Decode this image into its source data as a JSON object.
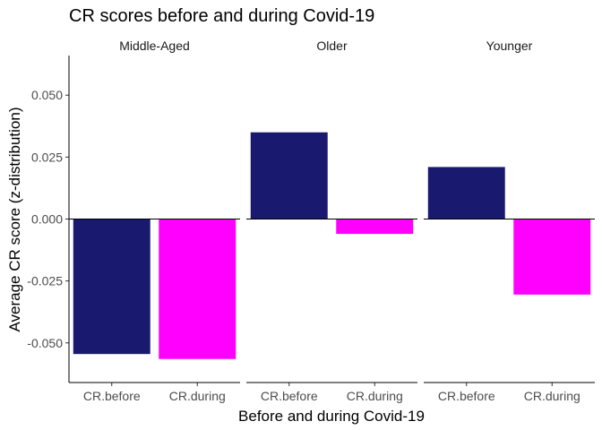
{
  "chart_data": {
    "type": "bar",
    "title": "CR scores before and during Covid-19",
    "xlabel": "Before and during Covid-19",
    "ylabel": "Average CR score (z-distribution)",
    "ylim": [
      -0.066,
      0.066
    ],
    "yticks": [
      -0.05,
      -0.025,
      0.0,
      0.025,
      0.05
    ],
    "ytick_labels": [
      "-0.050",
      "-0.025",
      "0.000",
      "0.025",
      "0.050"
    ],
    "categories": [
      "CR.before",
      "CR.during"
    ],
    "colors": {
      "CR.before": "#191970",
      "CR.during": "#ff00ff"
    },
    "grid": false,
    "legend": "none",
    "facets": [
      {
        "label": "Middle-Aged",
        "values": [
          -0.0545,
          -0.0565
        ]
      },
      {
        "label": "Older",
        "values": [
          0.035,
          -0.006
        ]
      },
      {
        "label": "Younger",
        "values": [
          0.021,
          -0.0305
        ]
      }
    ]
  }
}
